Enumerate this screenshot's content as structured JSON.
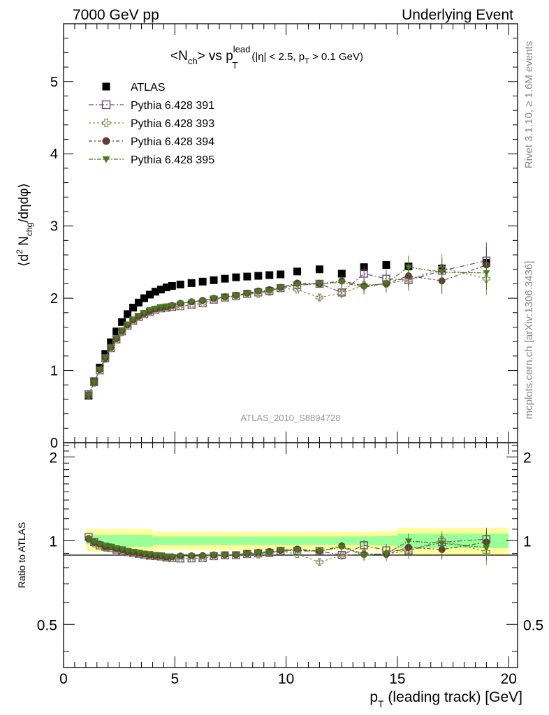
{
  "header": {
    "energy_label": "7000 GeV pp",
    "analysis_title": "Underlying Event"
  },
  "side_labels": {
    "rivet": "Rivet 3.1.10, ≥ 1.6M events",
    "mcplots": "mcplots.cern.ch [arXiv:1306.3436]"
  },
  "chart_data": [
    {
      "type": "scatter",
      "panel": "main",
      "title": {
        "prefix": "<N",
        "sub1": "ch",
        "mid": "> vs p",
        "sup": "lead",
        "sub2": "T",
        "suffix": "(|η| < 2.5, p",
        "sub3": "T",
        "suffix2": " > 0.1 GeV)"
      },
      "ylabel": {
        "open": "⟨d",
        "sup": "2",
        "mid": " N",
        "sub": "chg",
        "end": "/dηdφ⟩"
      },
      "watermark": "ATLAS_2010_S8894728",
      "xlim": [
        0,
        20.4
      ],
      "ylim": [
        0,
        5.8
      ],
      "y_ticks": [
        "0",
        "1",
        "2",
        "3",
        "4",
        "5"
      ],
      "x": [
        1.125,
        1.375,
        1.625,
        1.875,
        2.125,
        2.375,
        2.625,
        2.875,
        3.125,
        3.375,
        3.625,
        3.875,
        4.125,
        4.375,
        4.625,
        4.875,
        5.25,
        5.75,
        6.25,
        6.75,
        7.25,
        7.75,
        8.25,
        8.75,
        9.25,
        9.75,
        10.5,
        11.5,
        12.5,
        13.5,
        14.5,
        15.5,
        17.0,
        19.0
      ],
      "series": [
        {
          "name": "ATLAS",
          "color": "#000000",
          "marker": "filled-square",
          "values": [
            0.65,
            0.85,
            1.04,
            1.23,
            1.39,
            1.54,
            1.67,
            1.78,
            1.87,
            1.94,
            2.0,
            2.05,
            2.09,
            2.12,
            2.15,
            2.17,
            2.19,
            2.21,
            2.23,
            2.25,
            2.27,
            2.29,
            2.3,
            2.31,
            2.32,
            2.33,
            2.37,
            2.4,
            2.34,
            2.43,
            2.46,
            2.44,
            2.41,
            2.49
          ]
        },
        {
          "name": "Pythia 6.428 391",
          "color": "#6e4a6e",
          "marker": "open-square",
          "values": [
            0.67,
            0.84,
            1.0,
            1.17,
            1.31,
            1.43,
            1.54,
            1.62,
            1.69,
            1.74,
            1.78,
            1.81,
            1.84,
            1.86,
            1.87,
            1.88,
            1.89,
            1.91,
            1.93,
            1.98,
            2.01,
            2.03,
            2.06,
            2.08,
            2.1,
            2.14,
            2.18,
            2.2,
            2.08,
            2.34,
            2.27,
            2.25,
            2.38,
            2.52
          ]
        },
        {
          "name": "Pythia 6.428 393",
          "color": "#8a8a5c",
          "marker": "open-cross",
          "values": [
            0.66,
            0.83,
            1.0,
            1.16,
            1.31,
            1.43,
            1.53,
            1.62,
            1.69,
            1.74,
            1.78,
            1.81,
            1.84,
            1.86,
            1.87,
            1.88,
            1.89,
            1.91,
            1.93,
            1.98,
            2.01,
            2.03,
            2.06,
            2.06,
            2.09,
            2.14,
            2.12,
            2.01,
            2.07,
            2.18,
            2.2,
            2.25,
            2.42,
            2.27
          ]
        },
        {
          "name": "Pythia 6.428 394",
          "color": "#5c4033",
          "marker": "filled-circle",
          "values": [
            0.66,
            0.84,
            1.01,
            1.17,
            1.32,
            1.44,
            1.55,
            1.63,
            1.7,
            1.75,
            1.79,
            1.82,
            1.85,
            1.87,
            1.88,
            1.9,
            1.93,
            1.95,
            1.97,
            2.0,
            2.02,
            2.04,
            2.07,
            2.1,
            2.12,
            2.15,
            2.21,
            2.2,
            2.24,
            2.17,
            2.2,
            2.31,
            2.24,
            2.46
          ]
        },
        {
          "name": "Pythia 6.428 395",
          "color": "#4a7a1e",
          "marker": "filled-triangle-down",
          "values": [
            0.66,
            0.84,
            1.01,
            1.18,
            1.32,
            1.45,
            1.56,
            1.64,
            1.71,
            1.76,
            1.8,
            1.84,
            1.86,
            1.88,
            1.89,
            1.9,
            1.93,
            1.95,
            1.96,
            2.0,
            2.01,
            2.03,
            2.06,
            2.09,
            2.1,
            2.15,
            2.19,
            2.2,
            2.22,
            2.15,
            2.21,
            2.43,
            2.36,
            2.35
          ]
        }
      ],
      "legend_placement": "top-left"
    },
    {
      "type": "scatter",
      "panel": "ratio",
      "ylabel": "Ratio to ATLAS",
      "xlabel": {
        "pre": "p",
        "sub": "T",
        "post": " (leading track) [GeV]"
      },
      "xlim": [
        0,
        20.4
      ],
      "ylim": [
        0.35,
        2.25
      ],
      "y_scale": "log",
      "x_ticks": [
        "0",
        "5",
        "10",
        "15",
        "20"
      ],
      "y_ticks": [
        {
          "value": 0.5,
          "label": "0.5"
        },
        {
          "value": 1,
          "label": "1"
        },
        {
          "value": 2,
          "label": "2"
        }
      ],
      "band_edges": [
        1.0,
        1.25,
        4.0,
        14.0,
        15.0,
        20.0
      ],
      "band_green": [
        [
          0.97,
          1.03
        ],
        [
          0.95,
          1.05
        ],
        [
          0.965,
          1.035
        ],
        [
          0.96,
          1.04
        ],
        [
          0.94,
          1.06
        ]
      ],
      "band_yellow": [
        [
          0.92,
          1.1
        ],
        [
          0.91,
          1.1
        ],
        [
          0.925,
          1.075
        ],
        [
          0.92,
          1.08
        ],
        [
          0.89,
          1.11
        ]
      ]
    }
  ]
}
